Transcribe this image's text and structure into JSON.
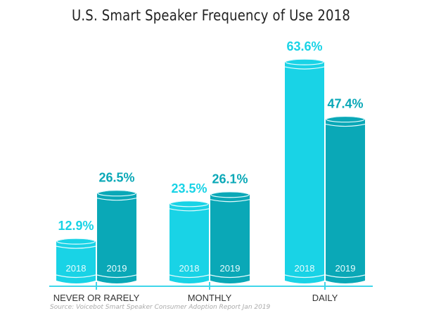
{
  "chart_data": {
    "type": "bar",
    "title": "U.S. Smart Speaker Frequency of Use 2018",
    "categories": [
      "NEVER OR RARELY",
      "MONTHLY",
      "DAILY"
    ],
    "series": [
      {
        "name": "2018",
        "color": "#19d3e6",
        "values": [
          12.9,
          23.5,
          63.6
        ],
        "labels": [
          "12.9%",
          "23.5%",
          "63.6%"
        ]
      },
      {
        "name": "2019",
        "color": "#0aa8b7",
        "values": [
          26.5,
          26.1,
          47.4
        ],
        "labels": [
          "26.5%",
          "26.1%",
          "47.4%"
        ]
      }
    ],
    "label_color": "#19c9dc",
    "axis_color": "#3fd6ea",
    "xlabel": "",
    "ylabel": "",
    "ylim": [
      0,
      70
    ],
    "grid": false,
    "source": "Source: Voicebot Smart Speaker Consumer Adoption Report Jan 2019"
  }
}
